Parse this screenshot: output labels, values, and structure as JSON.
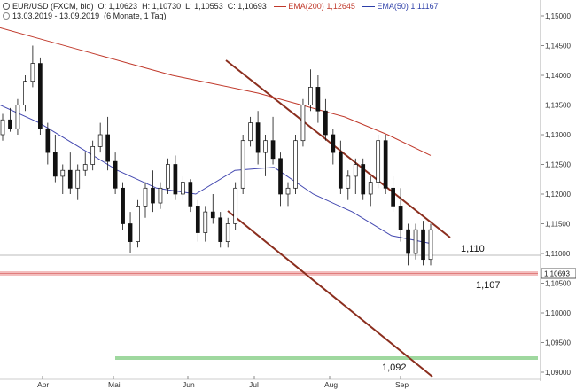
{
  "header": {
    "symbol": "EUR/USD (FXCM, bid)",
    "open": "O: 1,10623",
    "high": "H: 1,10730",
    "low": "L: 1,10553",
    "close": "C: 1,10693",
    "ema200_label": "EMA(200)",
    "ema200_value": "1,12645",
    "ema50_label": "EMA(50)",
    "ema50_value": "1,11167",
    "date_range": "13.03.2019 - 13.09.2019",
    "period": "(6 Monate, 1 Tag)"
  },
  "chart_data": {
    "type": "candlestick",
    "title": "",
    "xlabel": "",
    "ylabel": "",
    "ylim": [
      1.09,
      1.15
    ],
    "y_ticks": [
      "1,15000",
      "1,14500",
      "1,14000",
      "1,13500",
      "1,13000",
      "1,12500",
      "1,12000",
      "1,11500",
      "1,11000",
      "1,10500",
      "1,10000",
      "1,09500",
      "1,09000"
    ],
    "x_ticks": [
      "Apr",
      "Mai",
      "Jun",
      "Jul",
      "Aug",
      "Sep"
    ],
    "last_price_label": "1,10693",
    "colors": {
      "up": "#ffffff",
      "down": "#111111",
      "ema200": "#c0392b",
      "ema50": "#3b3ea8",
      "trend": "#8b2e1e",
      "resistance": "#e8a0a0",
      "support": "#8fd18f"
    },
    "annotations": [
      "1,110",
      "1,107",
      "1,092"
    ],
    "candles": [
      [
        1.13,
        1.1335,
        1.129,
        1.1325
      ],
      [
        1.1325,
        1.1345,
        1.1305,
        1.131
      ],
      [
        1.131,
        1.136,
        1.13,
        1.135
      ],
      [
        1.135,
        1.14,
        1.134,
        1.139
      ],
      [
        1.139,
        1.145,
        1.138,
        1.142
      ],
      [
        1.142,
        1.143,
        1.13,
        1.131
      ],
      [
        1.131,
        1.132,
        1.125,
        1.127
      ],
      [
        1.127,
        1.13,
        1.122,
        1.123
      ],
      [
        1.123,
        1.125,
        1.12,
        1.124
      ],
      [
        1.124,
        1.127,
        1.12,
        1.121
      ],
      [
        1.121,
        1.125,
        1.119,
        1.124
      ],
      [
        1.124,
        1.127,
        1.123,
        1.125
      ],
      [
        1.125,
        1.129,
        1.124,
        1.128
      ],
      [
        1.128,
        1.132,
        1.127,
        1.13
      ],
      [
        1.13,
        1.133,
        1.124,
        1.1255
      ],
      [
        1.1255,
        1.127,
        1.12,
        1.121
      ],
      [
        1.121,
        1.122,
        1.114,
        1.115
      ],
      [
        1.115,
        1.117,
        1.11,
        1.112
      ],
      [
        1.112,
        1.119,
        1.111,
        1.118
      ],
      [
        1.118,
        1.122,
        1.116,
        1.121
      ],
      [
        1.121,
        1.124,
        1.117,
        1.1185
      ],
      [
        1.1185,
        1.122,
        1.1175,
        1.121
      ],
      [
        1.121,
        1.126,
        1.12,
        1.125
      ],
      [
        1.125,
        1.1265,
        1.119,
        1.12
      ],
      [
        1.12,
        1.123,
        1.119,
        1.122
      ],
      [
        1.122,
        1.1225,
        1.117,
        1.118
      ],
      [
        1.118,
        1.119,
        1.112,
        1.1135
      ],
      [
        1.1135,
        1.118,
        1.112,
        1.117
      ],
      [
        1.117,
        1.12,
        1.115,
        1.116
      ],
      [
        1.116,
        1.117,
        1.111,
        1.112
      ],
      [
        1.112,
        1.116,
        1.111,
        1.115
      ],
      [
        1.115,
        1.122,
        1.114,
        1.121
      ],
      [
        1.121,
        1.13,
        1.12,
        1.129
      ],
      [
        1.129,
        1.133,
        1.128,
        1.132
      ],
      [
        1.132,
        1.134,
        1.125,
        1.127
      ],
      [
        1.127,
        1.13,
        1.123,
        1.129
      ],
      [
        1.129,
        1.133,
        1.125,
        1.126
      ],
      [
        1.126,
        1.127,
        1.118,
        1.12
      ],
      [
        1.12,
        1.122,
        1.118,
        1.121
      ],
      [
        1.121,
        1.13,
        1.12,
        1.129
      ],
      [
        1.129,
        1.136,
        1.128,
        1.135
      ],
      [
        1.135,
        1.141,
        1.134,
        1.138
      ],
      [
        1.138,
        1.14,
        1.132,
        1.134
      ],
      [
        1.134,
        1.136,
        1.129,
        1.13
      ],
      [
        1.13,
        1.131,
        1.125,
        1.127
      ],
      [
        1.127,
        1.129,
        1.12,
        1.121
      ],
      [
        1.121,
        1.124,
        1.119,
        1.123
      ],
      [
        1.123,
        1.126,
        1.12,
        1.125
      ],
      [
        1.125,
        1.126,
        1.119,
        1.12
      ],
      [
        1.12,
        1.123,
        1.118,
        1.122
      ],
      [
        1.122,
        1.13,
        1.121,
        1.129
      ],
      [
        1.129,
        1.13,
        1.12,
        1.121
      ],
      [
        1.121,
        1.123,
        1.117,
        1.118
      ],
      [
        1.118,
        1.121,
        1.112,
        1.114
      ],
      [
        1.114,
        1.115,
        1.108,
        1.11
      ],
      [
        1.11,
        1.115,
        1.109,
        1.114
      ],
      [
        1.114,
        1.1155,
        1.108,
        1.109
      ],
      [
        1.109,
        1.115,
        1.108,
        1.114
      ]
    ],
    "ema200": [
      1.148,
      1.146,
      1.144,
      1.142,
      1.14,
      1.1385,
      1.137,
      1.135,
      1.133,
      1.13,
      1.1265
    ],
    "ema50": [
      1.135,
      1.132,
      1.128,
      1.124,
      1.121,
      1.12,
      1.124,
      1.1245,
      1.12,
      1.117,
      1.113,
      1.1117
    ]
  }
}
